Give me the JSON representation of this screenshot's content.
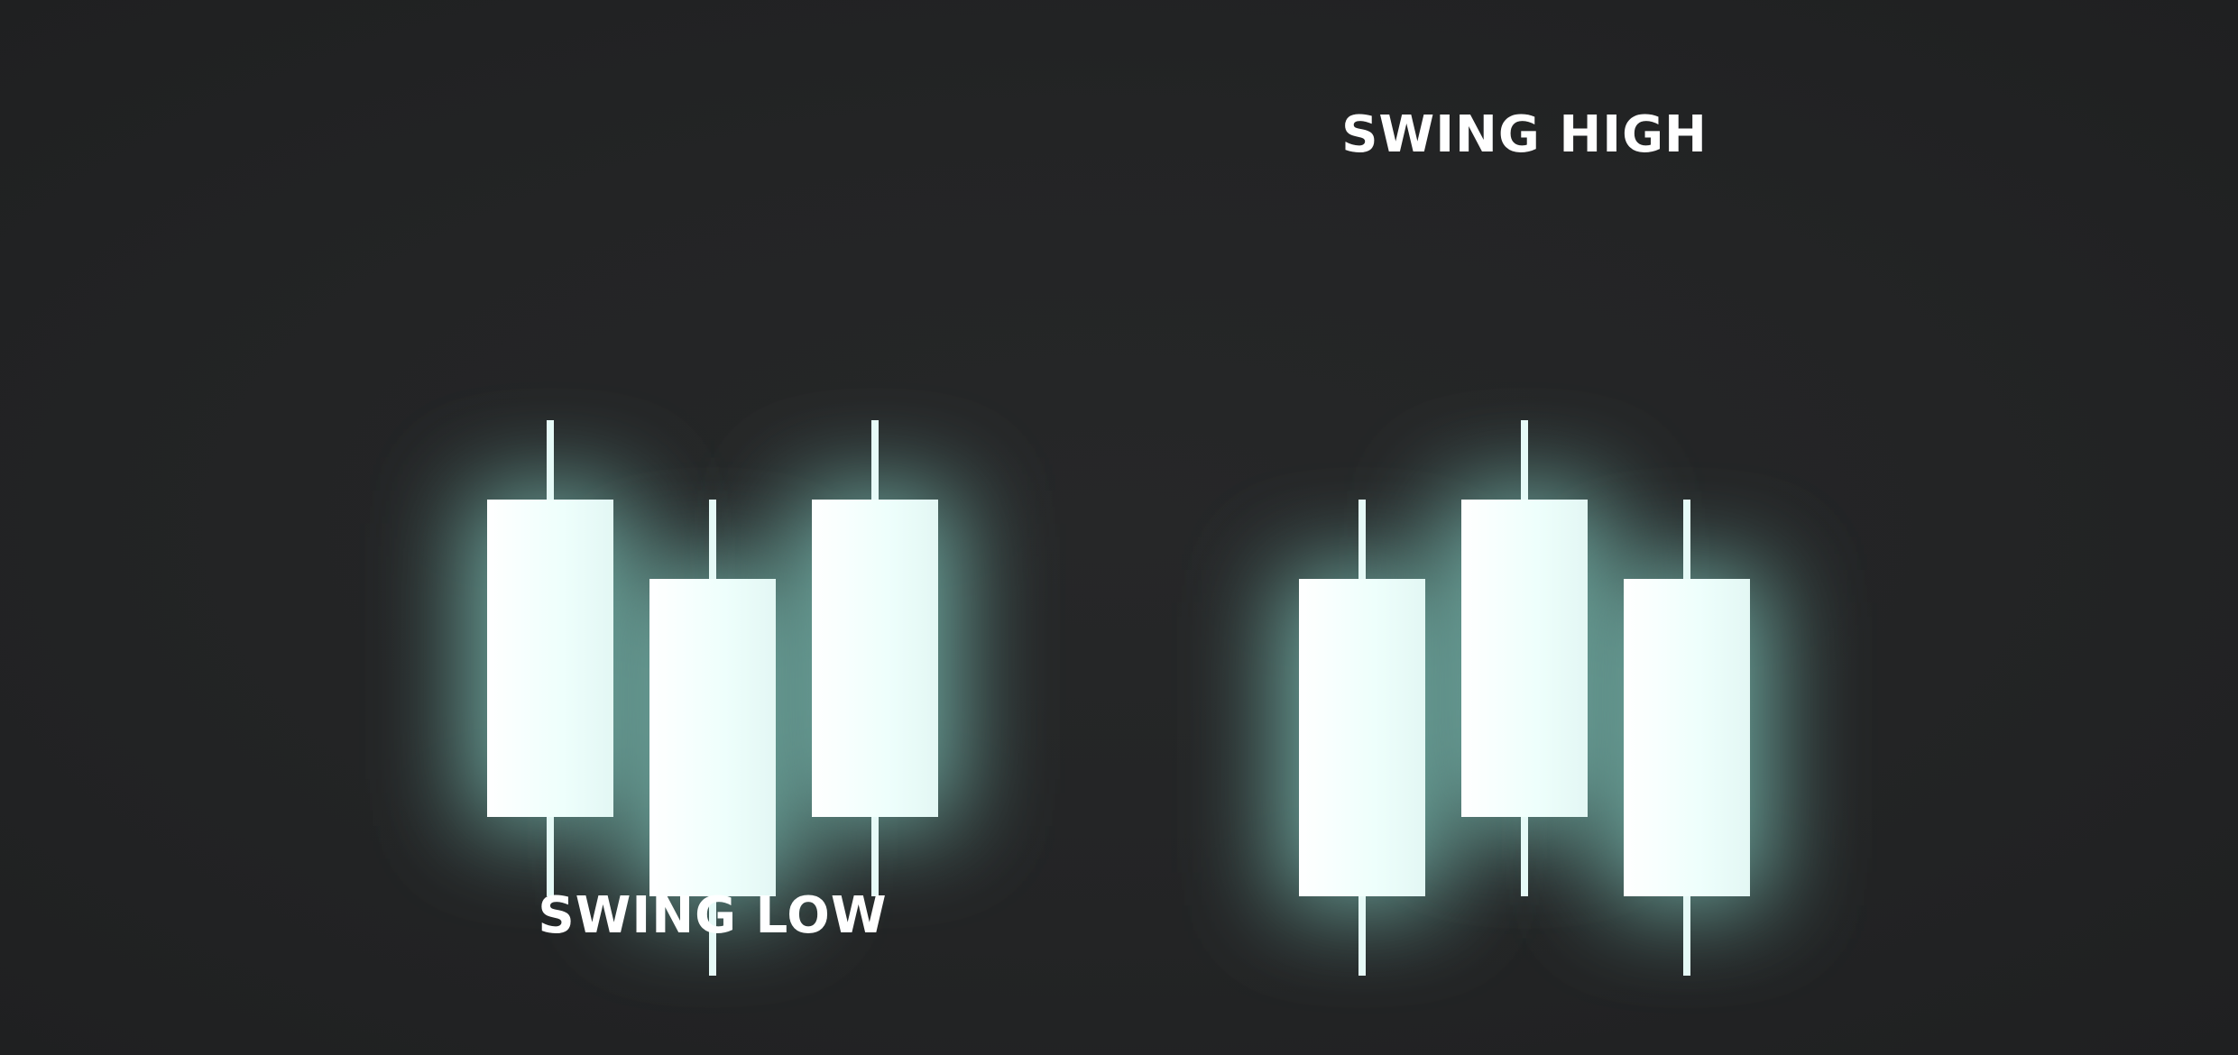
{
  "diagram": {
    "colors": {
      "background": "#222324",
      "glow": "#7fc7bc",
      "candle_body": "#f2fffd",
      "wick": "#e6faf7",
      "label_text": "#ffffff"
    },
    "patterns": [
      {
        "id": "swing-low",
        "label": "SWING LOW",
        "candles": [
          {
            "high": 3,
            "open_close_high": 2,
            "open_close_low": -2,
            "low": -3
          },
          {
            "high": 2,
            "open_close_high": 1,
            "open_close_low": -3,
            "low": -4
          },
          {
            "high": 3,
            "open_close_high": 2,
            "open_close_low": -2,
            "low": -3
          }
        ]
      },
      {
        "id": "swing-high",
        "label": "SWING HIGH",
        "candles": [
          {
            "high": 2,
            "open_close_high": 1,
            "open_close_low": -3,
            "low": -4
          },
          {
            "high": 3,
            "open_close_high": 2,
            "open_close_low": -2,
            "low": -3
          },
          {
            "high": 2,
            "open_close_high": 1,
            "open_close_low": -3,
            "low": -4
          }
        ]
      }
    ]
  }
}
